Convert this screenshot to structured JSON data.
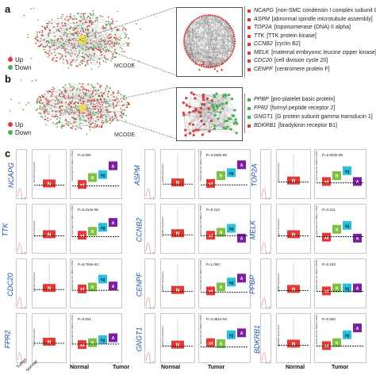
{
  "panels": {
    "a": {
      "letter": "a",
      "legend": [
        {
          "label": "Up",
          "color": "#d93a3a"
        },
        {
          "label": "Down",
          "color": "#4caf50"
        }
      ],
      "mcode": "MCODE",
      "genes": [
        {
          "symbol": "NCAPG",
          "desc": "[non-SMC condensin I complex subunit G]",
          "color": "#d93a3a"
        },
        {
          "symbol": "ASPM",
          "desc": "[abnormal spindle microtubule assembly]",
          "color": "#d93a3a"
        },
        {
          "symbol": "TOP2A",
          "desc": "[topoisomerase (DNA) II alpha]",
          "color": "#d93a3a"
        },
        {
          "symbol": "TTK",
          "desc": "[TTK protein kinase]",
          "color": "#d93a3a"
        },
        {
          "symbol": "CCNB2",
          "desc": "[cyclin B2]",
          "color": "#d93a3a"
        },
        {
          "symbol": "MELK",
          "desc": "[maternal embryonic leucine zipper kinase]",
          "color": "#d93a3a"
        },
        {
          "symbol": "CDC20",
          "desc": "[cell division cycle 20]",
          "color": "#d93a3a"
        },
        {
          "symbol": "CENPF",
          "desc": "[centromere protein F]",
          "color": "#d93a3a"
        }
      ]
    },
    "b": {
      "letter": "b",
      "legend": [
        {
          "label": "Up",
          "color": "#d93a3a"
        },
        {
          "label": "Down",
          "color": "#4caf50"
        }
      ],
      "mcode": "MCODE",
      "genes": [
        {
          "symbol": "PPBP",
          "desc": "[pro-platelet basic protein]",
          "color": "#4caf50"
        },
        {
          "symbol": "FPR2",
          "desc": "[formyl peptide receptor 2]",
          "color": "#4caf50"
        },
        {
          "symbol": "GNGT1",
          "desc": "[G protein subunit gamma transducin 1]",
          "color": "#4caf50"
        },
        {
          "symbol": "BDKRB1",
          "desc": "[bradykinin receptor B1]",
          "color": "#d93a3a"
        }
      ]
    },
    "c": {
      "letter": "c",
      "y_axis_label": "Transcripts Per Million (TPM)",
      "groups": [
        "sd",
        "N",
        "sg",
        "A"
      ],
      "group_colors": {
        "sd": "#e53935",
        "N": "#7cc142",
        "sg": "#29c0de",
        "A": "#7b1fa2"
      },
      "bottom_labels": {
        "normal": "Normal",
        "tumor": "Tumor",
        "mini_tumor": "Tumor",
        "mini_normal": "Normal"
      },
      "genes": [
        {
          "name": "NCAPG",
          "p": "P=5.00e",
          "expr": "NCAPG expression",
          "labels": [
            "sd",
            "N",
            "sg",
            "A"
          ],
          "normal": 0.3,
          "tumor": [
            0.28,
            0.42,
            0.48,
            0.66
          ]
        },
        {
          "name": "ASPM",
          "p": "P=4.535e-05",
          "expr": "ASPM expression",
          "labels": [
            "sd",
            "N",
            "sg",
            "A"
          ],
          "normal": 0.32,
          "tumor": [
            0.3,
            0.46,
            0.52,
            0.68
          ]
        },
        {
          "name": "TOP2A",
          "p": "P=2.923e-05",
          "expr": "TOP2A expression",
          "labels": [
            "sd",
            "N",
            "sg",
            "A"
          ],
          "normal": 0.36,
          "tumor": [
            0.34,
            0.46,
            0.56,
            0.34
          ]
        },
        {
          "name": "TTK",
          "p": "P=6.314e-06",
          "expr": "TTK expression",
          "labels": [
            "sd",
            "N",
            "sg",
            "A"
          ],
          "normal": 0.38,
          "tumor": [
            0.36,
            0.44,
            0.52,
            0.62
          ]
        },
        {
          "name": "CCNB2",
          "p": "P=0.213",
          "expr": "CCNB2 expression",
          "labels": [
            "sd",
            "N",
            "sg",
            "A"
          ],
          "normal": 0.4,
          "tumor": [
            0.36,
            0.42,
            0.5,
            0.3
          ]
        },
        {
          "name": "MELK",
          "p": "P=0.211",
          "expr": "MELK expression",
          "labels": [
            "sd",
            "N",
            "sg",
            "A"
          ],
          "normal": 0.38,
          "tumor": [
            0.32,
            0.48,
            0.56,
            0.3
          ]
        },
        {
          "name": "CDC20",
          "p": "P=6.702e-04",
          "expr": "CDC20 expression",
          "labels": [
            "sd",
            "N",
            "sg",
            "A"
          ],
          "normal": 0.4,
          "tumor": [
            0.38,
            0.42,
            0.58,
            0.44
          ]
        },
        {
          "name": "CENPF",
          "p": "P=1.062",
          "expr": "CENPF expression",
          "labels": [
            "sd",
            "N",
            "sg",
            "A"
          ],
          "normal": 0.36,
          "tumor": [
            0.34,
            0.42,
            0.52,
            0.6
          ]
        },
        {
          "name": "PPBP",
          "p": "P=0.243",
          "expr": "PPBP expression",
          "labels": [
            "sd",
            "N",
            "sg",
            "A"
          ],
          "normal": 0.38,
          "tumor": [
            0.34,
            0.4,
            0.4,
            0.4
          ]
        },
        {
          "name": "FPR2",
          "p": "P=0.021",
          "expr": "FPR2 expression",
          "labels": [
            "sd",
            "N",
            "sg",
            "A"
          ],
          "normal": 0.42,
          "tumor": [
            0.36,
            0.4,
            0.46,
            0.5
          ]
        },
        {
          "name": "GNGT1",
          "p": "P=3.481e-04",
          "expr": "GNGT1 expression",
          "labels": [
            "sd",
            "N",
            "sg",
            "A"
          ],
          "normal": 0.36,
          "tumor": [
            0.4,
            0.38,
            0.56,
            0.6
          ]
        },
        {
          "name": "BDKRB1",
          "p": "P=0.062",
          "expr": "BDKRB1 expression",
          "labels": [
            "sd",
            "N",
            "sg",
            "A"
          ],
          "normal": 0.38,
          "tumor": [
            0.34,
            0.4,
            0.56,
            0.7
          ]
        }
      ]
    }
  }
}
